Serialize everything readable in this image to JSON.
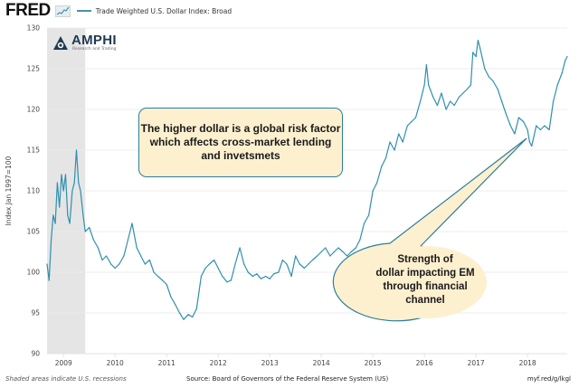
{
  "header": {
    "brand": "FRED",
    "series_name": "Trade Weighted U.S. Dollar Index: Broad"
  },
  "logo": {
    "name": "AMPHI",
    "tagline": "Research and Trading"
  },
  "footer": {
    "note": "Shaded areas indicate U.S. recessions",
    "source": "Source: Board of Governors of the Federal Reserve System (US)",
    "link": "myf.red/g/lkgl"
  },
  "annotations": {
    "box": "The higher dollar is a global risk factor which affects cross-market lending and invetsmets",
    "ellipse_lines": [
      "Strength of",
      "dollar impacting EM",
      "through financial",
      "channel"
    ]
  },
  "colors": {
    "line": "#2f8fae",
    "recession": "#e5e5e5",
    "callout_fill": "#fdf0cf",
    "callout_border": "#2c7e9c"
  },
  "chart_data": {
    "type": "line",
    "title": "Trade Weighted U.S. Dollar Index: Broad",
    "xlabel": "",
    "ylabel": "Index Jan 1997=100",
    "xlim": [
      2008.68,
      2018.77
    ],
    "ylim": [
      90,
      130
    ],
    "x_ticks": [
      "2009",
      "2010",
      "2011",
      "2012",
      "2013",
      "2014",
      "2015",
      "2016",
      "2017",
      "2018"
    ],
    "y_ticks": [
      90,
      95,
      100,
      105,
      110,
      115,
      120,
      125,
      130
    ],
    "grid": true,
    "recessions": [
      [
        2008.68,
        2009.42
      ]
    ],
    "series": [
      {
        "name": "Trade Weighted U.S. Dollar Index: Broad",
        "x": [
          2008.68,
          2008.72,
          2008.76,
          2008.8,
          2008.84,
          2008.88,
          2008.92,
          2008.96,
          2009.0,
          2009.04,
          2009.08,
          2009.12,
          2009.17,
          2009.21,
          2009.25,
          2009.29,
          2009.33,
          2009.38,
          2009.42,
          2009.5,
          2009.58,
          2009.67,
          2009.75,
          2009.83,
          2009.92,
          2010.0,
          2010.08,
          2010.17,
          2010.25,
          2010.33,
          2010.42,
          2010.5,
          2010.58,
          2010.67,
          2010.75,
          2010.83,
          2010.92,
          2011.0,
          2011.08,
          2011.17,
          2011.25,
          2011.33,
          2011.42,
          2011.5,
          2011.58,
          2011.67,
          2011.75,
          2011.83,
          2011.92,
          2012.0,
          2012.08,
          2012.17,
          2012.25,
          2012.33,
          2012.42,
          2012.5,
          2012.58,
          2012.67,
          2012.75,
          2012.83,
          2012.92,
          2013.0,
          2013.08,
          2013.17,
          2013.25,
          2013.33,
          2013.42,
          2013.5,
          2013.58,
          2013.67,
          2013.75,
          2013.83,
          2013.92,
          2014.0,
          2014.08,
          2014.17,
          2014.25,
          2014.33,
          2014.42,
          2014.5,
          2014.58,
          2014.67,
          2014.75,
          2014.83,
          2014.92,
          2015.0,
          2015.08,
          2015.17,
          2015.25,
          2015.33,
          2015.42,
          2015.5,
          2015.58,
          2015.67,
          2015.75,
          2015.83,
          2015.92,
          2016.0,
          2016.04,
          2016.08,
          2016.17,
          2016.25,
          2016.33,
          2016.42,
          2016.5,
          2016.58,
          2016.67,
          2016.75,
          2016.83,
          2016.9,
          2016.94,
          2017.0,
          2017.04,
          2017.08,
          2017.17,
          2017.25,
          2017.33,
          2017.42,
          2017.5,
          2017.58,
          2017.67,
          2017.75,
          2017.83,
          2017.92,
          2018.0,
          2018.04,
          2018.08,
          2018.17,
          2018.25,
          2018.33,
          2018.42,
          2018.5,
          2018.58,
          2018.67,
          2018.73,
          2018.77
        ],
        "y": [
          101,
          99,
          104,
          107,
          106,
          111,
          108,
          112,
          110,
          112,
          107,
          106,
          110,
          111,
          115,
          111,
          110,
          107,
          105,
          105.5,
          104,
          103,
          101.5,
          102,
          101,
          100.5,
          101,
          102,
          104,
          106,
          103,
          102,
          101,
          101.5,
          100,
          99.5,
          99,
          98.5,
          97,
          96,
          95,
          94.2,
          94.8,
          94.5,
          95.5,
          99.5,
          100.5,
          101,
          101.5,
          100.5,
          99.5,
          98.8,
          99,
          101,
          103,
          101,
          100,
          99.5,
          99.8,
          99.2,
          99.5,
          99.2,
          99.8,
          100,
          101.5,
          101,
          99.5,
          102,
          101,
          100.5,
          101,
          101.5,
          102,
          102.5,
          103,
          102,
          102.5,
          103,
          102.5,
          102,
          102.5,
          103,
          104,
          106,
          107,
          110,
          111,
          113,
          114,
          116,
          115,
          117,
          116,
          118,
          118.5,
          119,
          121,
          123,
          125.5,
          123,
          121.5,
          120.5,
          122,
          120,
          121,
          120.5,
          121.5,
          122,
          122.5,
          123,
          127,
          126.5,
          128.5,
          127.5,
          125,
          124,
          123.5,
          122.5,
          121,
          119.5,
          118,
          117,
          119,
          118.5,
          117.5,
          116,
          115.5,
          118,
          117.5,
          118,
          117.5,
          121,
          123,
          124.5,
          126,
          126.5
        ]
      }
    ]
  }
}
